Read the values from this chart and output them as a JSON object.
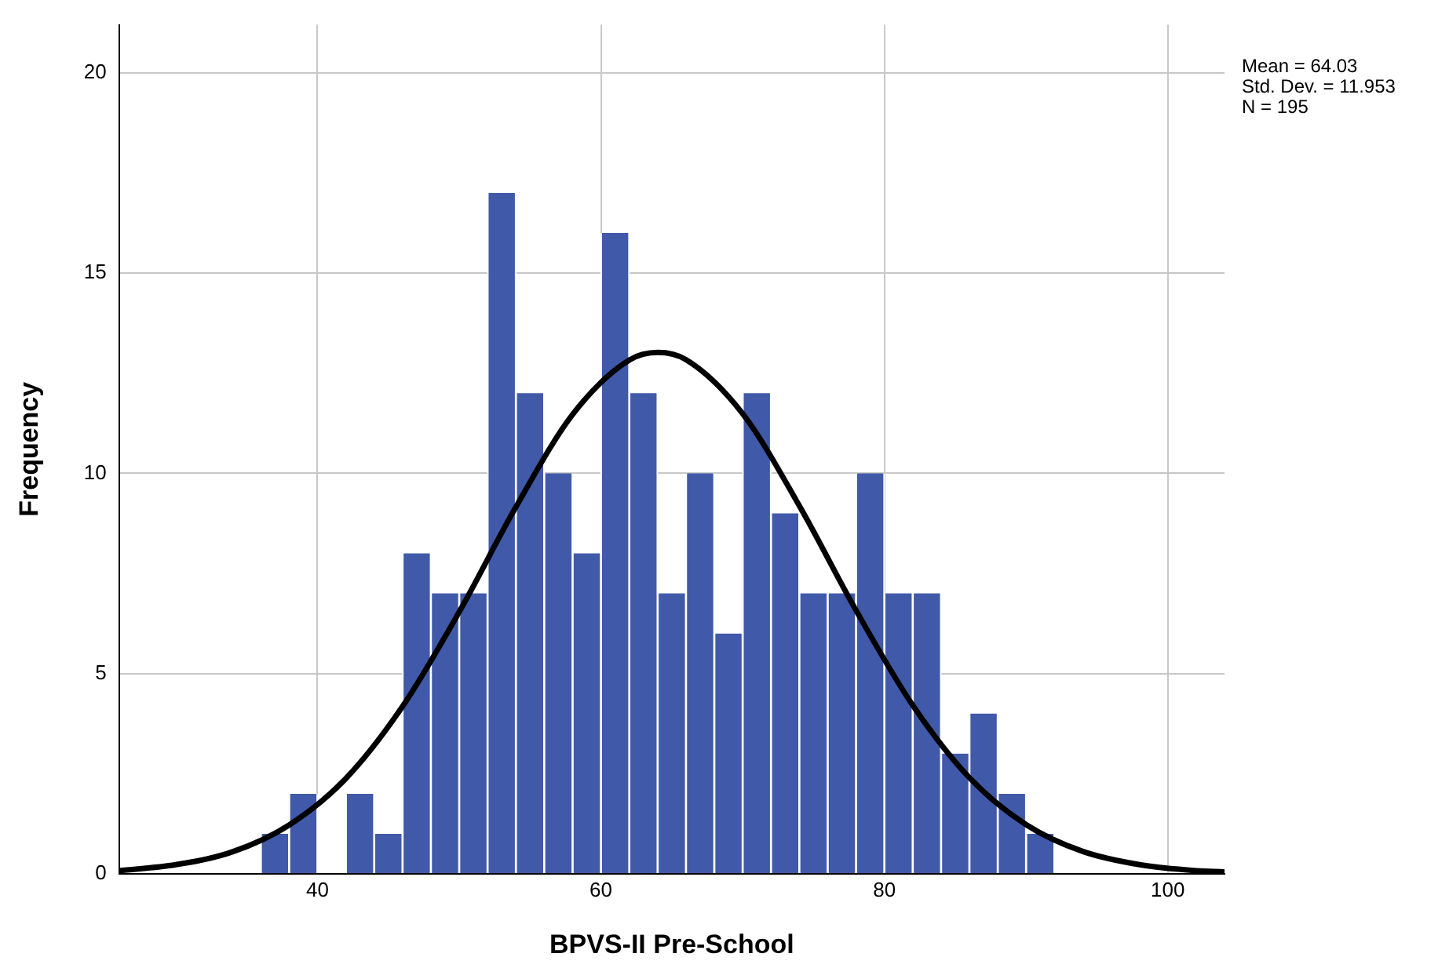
{
  "chart_data": {
    "type": "histogram",
    "xlabel": "BPVS-II Pre-School",
    "ylabel": "Frequency",
    "bins": [
      36,
      38,
      40,
      42,
      44,
      46,
      48,
      50,
      52,
      54,
      56,
      58,
      60,
      62,
      64,
      66,
      68,
      70,
      72,
      74,
      76,
      78,
      80,
      82,
      84,
      86,
      88,
      90,
      92
    ],
    "values": [
      1,
      2,
      0,
      2,
      1,
      8,
      7,
      7,
      17,
      12,
      10,
      8,
      16,
      12,
      7,
      10,
      6,
      12,
      9,
      7,
      7,
      10,
      7,
      7,
      3,
      4,
      2,
      1
    ],
    "color": "#4059a8",
    "series": [
      {
        "type": "line",
        "color": "#000000",
        "x": [
          26,
          30,
          34,
          38,
          42,
          46,
          50,
          54,
          58,
          62,
          64.03,
          66,
          70,
          74,
          78,
          82,
          86,
          90,
          94,
          98,
          102,
          104
        ],
        "values": [
          0.08,
          0.23,
          0.55,
          1.22,
          2.38,
          4.18,
          6.54,
          9.16,
          11.47,
          12.83,
          13.02,
          12.84,
          11.49,
          9.19,
          6.58,
          4.21,
          2.4,
          1.23,
          0.56,
          0.23,
          0.08,
          0.05
        ]
      }
    ],
    "xlim": [
      26,
      104
    ],
    "ylim": [
      0,
      21.2
    ],
    "xticks": [
      40,
      60,
      80,
      100
    ],
    "yticks": [
      0,
      5,
      10,
      15,
      20
    ],
    "grid": true,
    "legend": false,
    "marker": "none",
    "line_style": "solid",
    "annotations": [
      "Mean = 64.03",
      "Std. Dev. = 11.953",
      "N = 195"
    ]
  }
}
